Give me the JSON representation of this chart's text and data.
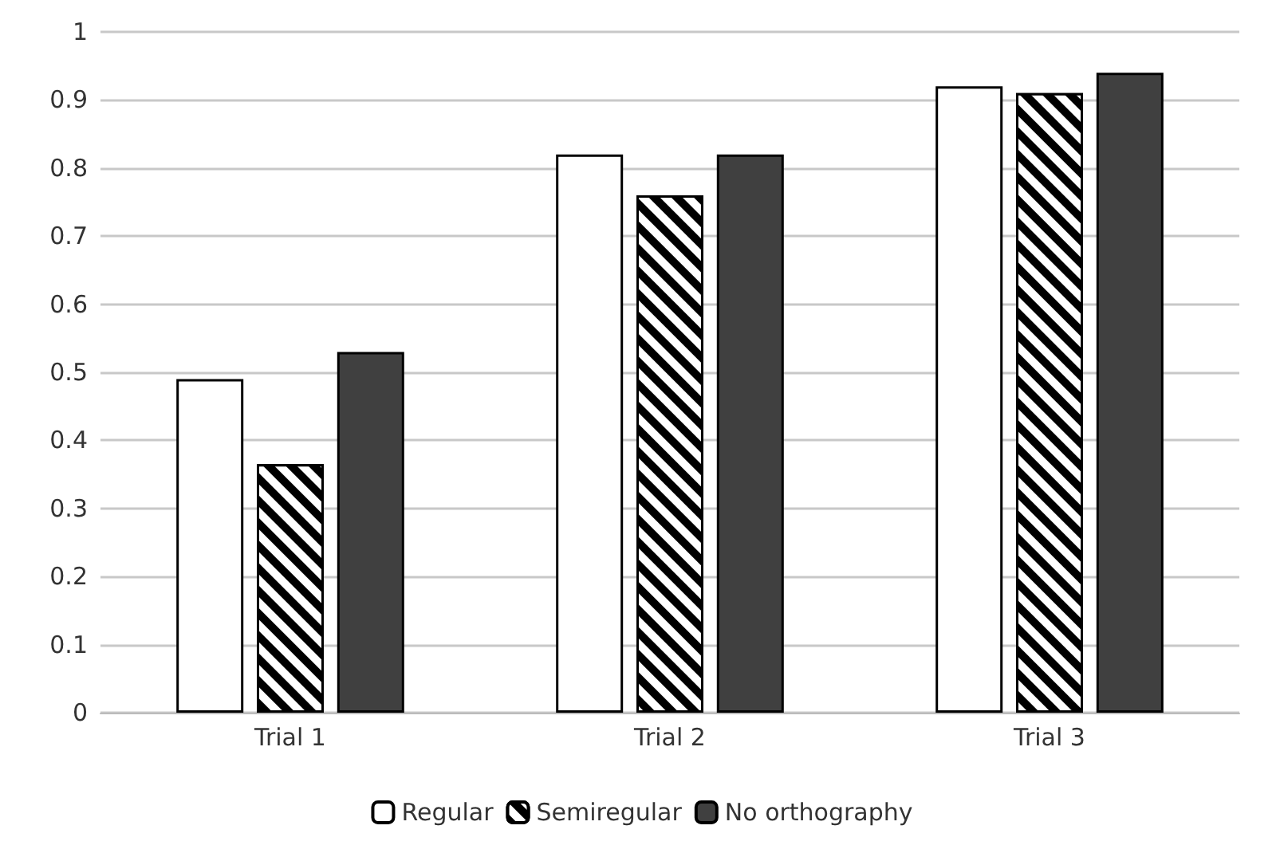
{
  "chart_data": {
    "type": "bar",
    "categories": [
      "Trial 1",
      "Trial 2",
      "Trial 3"
    ],
    "series": [
      {
        "name": "Regular",
        "color": "#ffffff",
        "values": [
          0.49,
          0.82,
          0.92
        ]
      },
      {
        "name": "Semiregular",
        "color": "#000000",
        "values": [
          0.365,
          0.76,
          0.91
        ]
      },
      {
        "name": "No orthography",
        "color": "#404040",
        "values": [
          0.53,
          0.82,
          0.94
        ]
      }
    ],
    "ylim": [
      0,
      1
    ],
    "yticks": [
      0,
      0.1,
      0.2,
      0.3,
      0.4,
      0.5,
      0.6,
      0.7,
      0.8,
      0.9,
      1
    ],
    "grid": "y",
    "legend": "bottom"
  }
}
